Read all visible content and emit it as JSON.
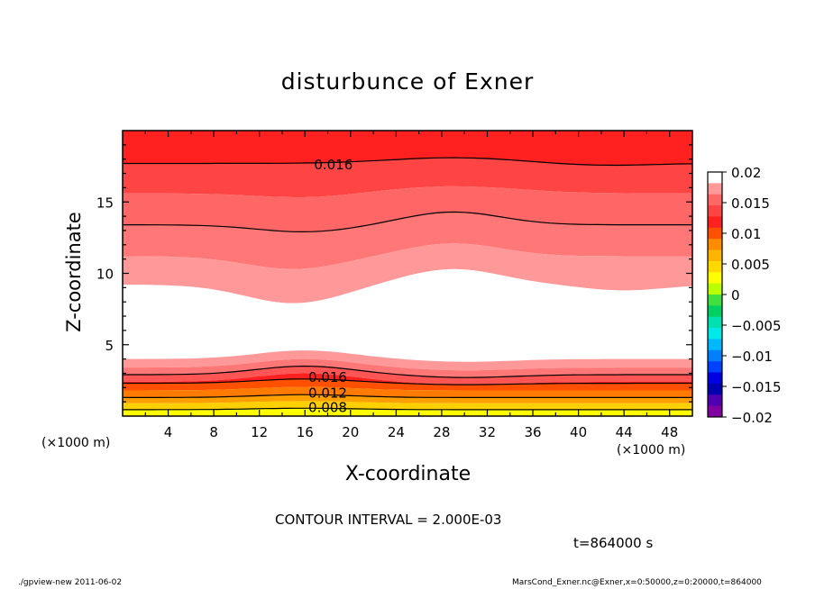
{
  "chart_data": {
    "type": "heatmap",
    "title": "disturbunce of Exner",
    "xlabel": "X-coordinate",
    "ylabel": "Z-coordinate",
    "x_unit": "(×1000 m)",
    "xlim": [
      0,
      50
    ],
    "ylim": [
      0,
      20
    ],
    "x_ticks": [
      4,
      8,
      12,
      16,
      20,
      24,
      28,
      32,
      36,
      40,
      44,
      48
    ],
    "y_ticks": [
      5,
      10,
      15
    ],
    "contour_labels": [
      {
        "text": "0.016",
        "x": 18.5,
        "z": 17.6
      },
      {
        "text": "0.016",
        "x": 18,
        "z": 2.7
      },
      {
        "text": "0.012",
        "x": 18,
        "z": 1.6
      },
      {
        "text": "0.008",
        "x": 18,
        "z": 0.6
      }
    ],
    "colorbar": {
      "labels": [
        "0.02",
        "0.015",
        "0.01",
        "0.005",
        "0",
        "−0.005",
        "−0.01",
        "−0.015",
        "−0.02"
      ],
      "colors": [
        "#ffffff",
        "#ff9999",
        "#ff6666",
        "#ff4444",
        "#ff2020",
        "#ff5000",
        "#ff8c00",
        "#ffb400",
        "#ffd800",
        "#ffff00",
        "#b8ff00",
        "#40e040",
        "#00d060",
        "#00e0b0",
        "#00e8e8",
        "#00b8ff",
        "#0080ff",
        "#0040ff",
        "#0000e0",
        "#0000b0",
        "#5000b0",
        "#8000a0"
      ]
    }
  },
  "labels": {
    "contour_interval": "CONTOUR INTERVAL = 2.000E-03",
    "time": "t=864000  s",
    "footer_left": "./gpview-new   2011-06-02",
    "footer_right": "MarsCond_Exner.nc@Exner,x=0:50000,z=0:20000,t=864000"
  }
}
